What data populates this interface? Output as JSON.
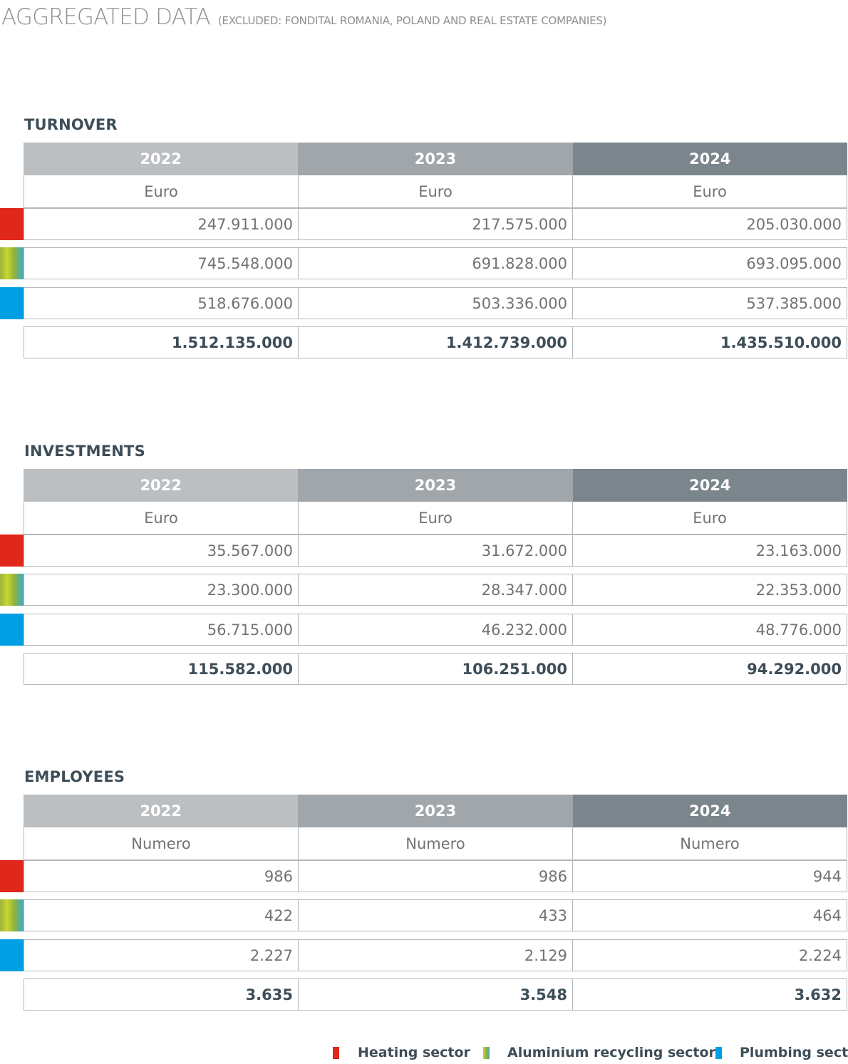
{
  "header": {
    "title": "AGGREGATED DATA",
    "subtitle": "(EXCLUDED: FONDITAL ROMANIA, POLAND AND REAL ESTATE COMPANIES)"
  },
  "colors": {
    "heating": "#e1261c",
    "aluminium": "#9bb33a",
    "plumbing": "#009fe3",
    "year_2022": "#bcbfc2",
    "year_2023": "#a1a6aa",
    "year_2024": "#7b868c"
  },
  "sections": [
    {
      "title": "TURNOVER",
      "years": [
        "2022",
        "2023",
        "2024"
      ],
      "units": [
        "Euro",
        "Euro",
        "Euro"
      ],
      "rows": [
        [
          "247.911.000",
          "217.575.000",
          "205.030.000"
        ],
        [
          "745.548.000",
          "691.828.000",
          "693.095.000"
        ],
        [
          "518.676.000",
          "503.336.000",
          "537.385.000"
        ]
      ],
      "totals": [
        "1.512.135.000",
        "1.412.739.000",
        "1.435.510.000"
      ]
    },
    {
      "title": "INVESTMENTS",
      "years": [
        "2022",
        "2023",
        "2024"
      ],
      "units": [
        "Euro",
        "Euro",
        "Euro"
      ],
      "rows": [
        [
          "35.567.000",
          "31.672.000",
          "23.163.000"
        ],
        [
          "23.300.000",
          "28.347.000",
          "22.353.000"
        ],
        [
          "56.715.000",
          "46.232.000",
          "48.776.000"
        ]
      ],
      "totals": [
        "115.582.000",
        "106.251.000",
        "94.292.000"
      ]
    },
    {
      "title": "EMPLOYEES",
      "years": [
        "2022",
        "2023",
        "2024"
      ],
      "units": [
        "Numero",
        "Numero",
        "Numero"
      ],
      "rows": [
        [
          "986",
          "986",
          "944"
        ],
        [
          "422",
          "433",
          "464"
        ],
        [
          "2.227",
          "2.129",
          "2.224"
        ]
      ],
      "totals": [
        "3.635",
        "3.548",
        "3.632"
      ]
    }
  ],
  "legend": {
    "heating": "Heating sector",
    "aluminium": "Aluminium recycling sector",
    "plumbing": "Plumbing sector"
  }
}
